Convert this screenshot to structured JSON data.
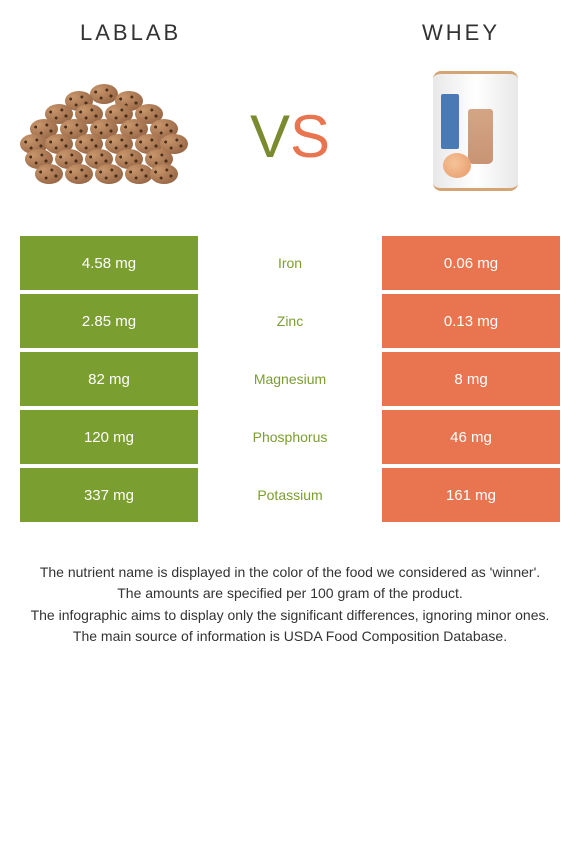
{
  "header": {
    "left": "LABLAB",
    "right": "WHEY"
  },
  "vs": {
    "v": "V",
    "s": "S"
  },
  "colors": {
    "green": "#7a9e2f",
    "orange": "#e8754f",
    "text": "#333333",
    "white": "#ffffff"
  },
  "nutrients": [
    {
      "name": "Iron",
      "left": "4.58 mg",
      "right": "0.06 mg",
      "winner": "green"
    },
    {
      "name": "Zinc",
      "left": "2.85 mg",
      "right": "0.13 mg",
      "winner": "green"
    },
    {
      "name": "Magnesium",
      "left": "82 mg",
      "right": "8 mg",
      "winner": "green"
    },
    {
      "name": "Phosphorus",
      "left": "120 mg",
      "right": "46 mg",
      "winner": "green"
    },
    {
      "name": "Potassium",
      "left": "337 mg",
      "right": "161 mg",
      "winner": "green"
    }
  ],
  "footer": {
    "line1": "The nutrient name is displayed in the color of the food we considered as 'winner'.",
    "line2": "The amounts are specified per 100 gram of the product.",
    "line3": "The infographic aims to display only the significant differences, ignoring minor ones.",
    "line4": "The main source of information is USDA Food Composition Database."
  }
}
